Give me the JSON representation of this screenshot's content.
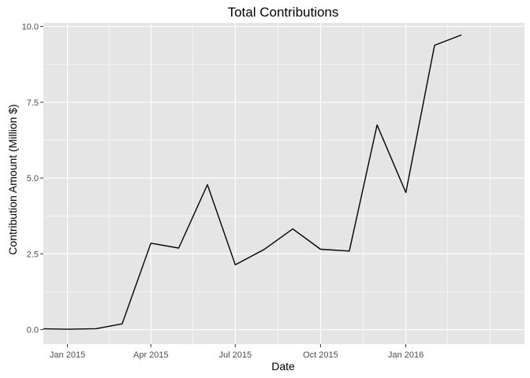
{
  "chart_data": {
    "type": "line",
    "title": "Total Contributions",
    "xlabel": "Date",
    "ylabel": "Contribution Amount (Million $)",
    "xlim": [
      "2014-12-06",
      "2016-05-08"
    ],
    "ylim": [
      -0.48,
      10.12
    ],
    "x_ticks": [
      {
        "date": "2015-01-01",
        "label": "Jan 2015"
      },
      {
        "date": "2015-04-01",
        "label": "Apr 2015"
      },
      {
        "date": "2015-07-01",
        "label": "Jul 2015"
      },
      {
        "date": "2015-10-01",
        "label": "Oct 2015"
      },
      {
        "date": "2016-01-01",
        "label": "Jan 2016"
      }
    ],
    "x_minor_ticks": [
      "2015-02-15",
      "2015-05-16",
      "2015-08-16",
      "2015-11-16",
      "2016-02-15",
      "2016-04-01"
    ],
    "y_ticks": [
      {
        "value": 0,
        "label": "0.0"
      },
      {
        "value": 2.5,
        "label": "2.5"
      },
      {
        "value": 5,
        "label": "5.0"
      },
      {
        "value": 7.5,
        "label": "7.5"
      },
      {
        "value": 10,
        "label": "10.0"
      }
    ],
    "y_minor_ticks": [
      1.25,
      3.75,
      6.25,
      8.75
    ],
    "grid": true,
    "colors": {
      "panel": "#e5e5e5",
      "grid": "#ffffff",
      "line": "#000000"
    },
    "series": [
      {
        "x": [
          "2014-12-01",
          "2015-01-01",
          "2015-02-01",
          "2015-03-01",
          "2015-04-01",
          "2015-05-01",
          "2015-06-01",
          "2015-07-01",
          "2015-08-01",
          "2015-09-01",
          "2015-10-01",
          "2015-11-01",
          "2015-12-01",
          "2016-01-01",
          "2016-02-01",
          "2016-03-01"
        ],
        "values": [
          0.03,
          0.01,
          0.03,
          0.19,
          2.85,
          2.69,
          4.78,
          2.14,
          2.64,
          3.32,
          2.65,
          2.59,
          6.75,
          4.52,
          9.38,
          9.72
        ]
      }
    ]
  }
}
